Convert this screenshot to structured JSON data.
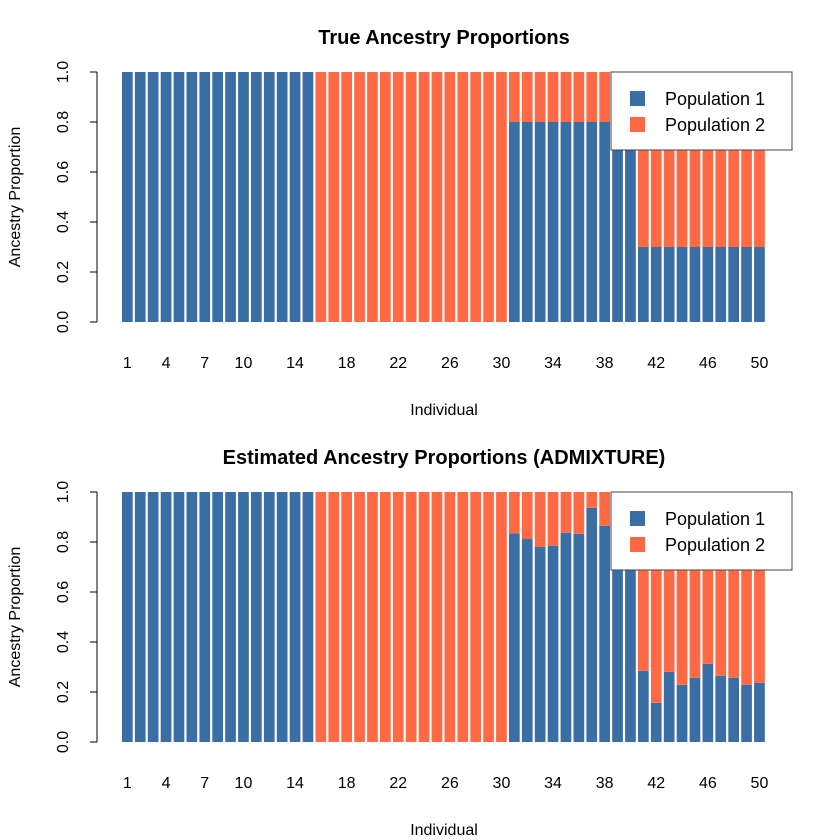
{
  "colors": {
    "population_1": "#3A6EA5",
    "population_2": "#FF6A45"
  },
  "chart_data": [
    {
      "type": "bar",
      "stacked": true,
      "title": "True Ancestry Proportions",
      "xlabel": "Individual",
      "ylabel": "Ancestry Proportion",
      "ylim": [
        0,
        1
      ],
      "yticks": [
        "0.0",
        "0.2",
        "0.4",
        "0.6",
        "0.8",
        "1.0"
      ],
      "xtick_labels": [
        "1",
        "4",
        "7",
        "10",
        "14",
        "18",
        "22",
        "26",
        "30",
        "34",
        "38",
        "42",
        "46",
        "50"
      ],
      "legend": {
        "placement": "top-right",
        "entries": [
          "Population 1",
          "Population 2"
        ]
      },
      "categories": [
        1,
        2,
        3,
        4,
        5,
        6,
        7,
        8,
        9,
        10,
        11,
        12,
        13,
        14,
        15,
        16,
        17,
        18,
        19,
        20,
        21,
        22,
        23,
        24,
        25,
        26,
        27,
        28,
        29,
        30,
        31,
        32,
        33,
        34,
        35,
        36,
        37,
        38,
        39,
        40,
        41,
        42,
        43,
        44,
        45,
        46,
        47,
        48,
        49,
        50
      ],
      "series": [
        {
          "name": "Population 1",
          "values": [
            1,
            1,
            1,
            1,
            1,
            1,
            1,
            1,
            1,
            1,
            1,
            1,
            1,
            1,
            1,
            0,
            0,
            0,
            0,
            0,
            0,
            0,
            0,
            0,
            0,
            0,
            0,
            0,
            0,
            0,
            0.8,
            0.8,
            0.8,
            0.8,
            0.8,
            0.8,
            0.8,
            0.8,
            0.8,
            0.8,
            0.3,
            0.3,
            0.3,
            0.3,
            0.3,
            0.3,
            0.3,
            0.3,
            0.3,
            0.3
          ]
        },
        {
          "name": "Population 2",
          "values": [
            0,
            0,
            0,
            0,
            0,
            0,
            0,
            0,
            0,
            0,
            0,
            0,
            0,
            0,
            0,
            1,
            1,
            1,
            1,
            1,
            1,
            1,
            1,
            1,
            1,
            1,
            1,
            1,
            1,
            1,
            0.2,
            0.2,
            0.2,
            0.2,
            0.2,
            0.2,
            0.2,
            0.2,
            0.2,
            0.2,
            0.7,
            0.7,
            0.7,
            0.7,
            0.7,
            0.7,
            0.7,
            0.7,
            0.7,
            0.7
          ]
        }
      ]
    },
    {
      "type": "bar",
      "stacked": true,
      "title": "Estimated Ancestry Proportions (ADMIXTURE)",
      "xlabel": "Individual",
      "ylabel": "Ancestry Proportion",
      "ylim": [
        0,
        1
      ],
      "yticks": [
        "0.0",
        "0.2",
        "0.4",
        "0.6",
        "0.8",
        "1.0"
      ],
      "xtick_labels": [
        "1",
        "4",
        "7",
        "10",
        "14",
        "18",
        "22",
        "26",
        "30",
        "34",
        "38",
        "42",
        "46",
        "50"
      ],
      "legend": {
        "placement": "top-right",
        "entries": [
          "Population 1",
          "Population 2"
        ]
      },
      "categories": [
        1,
        2,
        3,
        4,
        5,
        6,
        7,
        8,
        9,
        10,
        11,
        12,
        13,
        14,
        15,
        16,
        17,
        18,
        19,
        20,
        21,
        22,
        23,
        24,
        25,
        26,
        27,
        28,
        29,
        30,
        31,
        32,
        33,
        34,
        35,
        36,
        37,
        38,
        39,
        40,
        41,
        42,
        43,
        44,
        45,
        46,
        47,
        48,
        49,
        50
      ],
      "series": [
        {
          "name": "Population 1",
          "values": [
            1,
            1,
            1,
            1,
            1,
            1,
            1,
            1,
            1,
            1,
            1,
            1,
            1,
            1,
            1,
            0,
            0,
            0,
            0,
            0,
            0,
            0,
            0,
            0,
            0,
            0,
            0,
            0,
            0,
            0,
            0.835,
            0.812,
            0.78,
            0.785,
            0.837,
            0.833,
            0.937,
            0.865,
            0.82,
            0.78,
            0.285,
            0.157,
            0.281,
            0.229,
            0.257,
            0.313,
            0.265,
            0.257,
            0.229,
            0.237
          ]
        },
        {
          "name": "Population 2",
          "values": [
            0,
            0,
            0,
            0,
            0,
            0,
            0,
            0,
            0,
            0,
            0,
            0,
            0,
            0,
            0,
            1,
            1,
            1,
            1,
            1,
            1,
            1,
            1,
            1,
            1,
            1,
            1,
            1,
            1,
            1,
            0.165,
            0.188,
            0.22,
            0.215,
            0.163,
            0.167,
            0.063,
            0.135,
            0.18,
            0.22,
            0.715,
            0.843,
            0.719,
            0.771,
            0.743,
            0.687,
            0.735,
            0.743,
            0.771,
            0.763
          ]
        }
      ]
    }
  ]
}
